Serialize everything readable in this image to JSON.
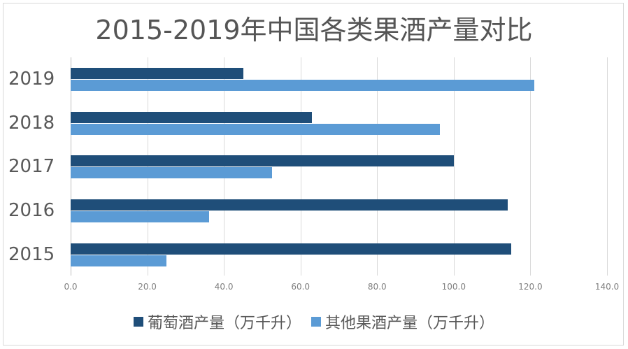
{
  "chart_data": {
    "type": "bar",
    "orientation": "horizontal",
    "title": "2015-2019年中国各类果酒产量对比",
    "xlabel": "",
    "ylabel": "",
    "categories": [
      "2019",
      "2018",
      "2017",
      "2016",
      "2015"
    ],
    "series": [
      {
        "name": "葡萄酒产量（万千升）",
        "color": "#1f4e79",
        "values": [
          45.0,
          63.0,
          100.0,
          114.0,
          115.0
        ]
      },
      {
        "name": "其他果酒产量（万千升）",
        "color": "#5b9bd5",
        "values": [
          121.0,
          96.4,
          52.6,
          36.1,
          25.0
        ]
      }
    ],
    "xlim": [
      0,
      140
    ],
    "x_ticks": [
      "0.0",
      "20.0",
      "40.0",
      "60.0",
      "80.0",
      "100.0",
      "120.0",
      "140.0"
    ],
    "grid": true,
    "legend_position": "bottom"
  },
  "title": "2015-2019年中国各类果酒产量对比",
  "legend": {
    "items": [
      {
        "label": "葡萄酒产量（万千升）",
        "color": "#1f4e79"
      },
      {
        "label": "其他果酒产量（万千升）",
        "color": "#5b9bd5"
      }
    ]
  },
  "axis": {
    "x_ticks": [
      "0.0",
      "20.0",
      "40.0",
      "60.0",
      "80.0",
      "100.0",
      "120.0",
      "140.0"
    ],
    "categories": [
      "2019",
      "2018",
      "2017",
      "2016",
      "2015"
    ]
  }
}
